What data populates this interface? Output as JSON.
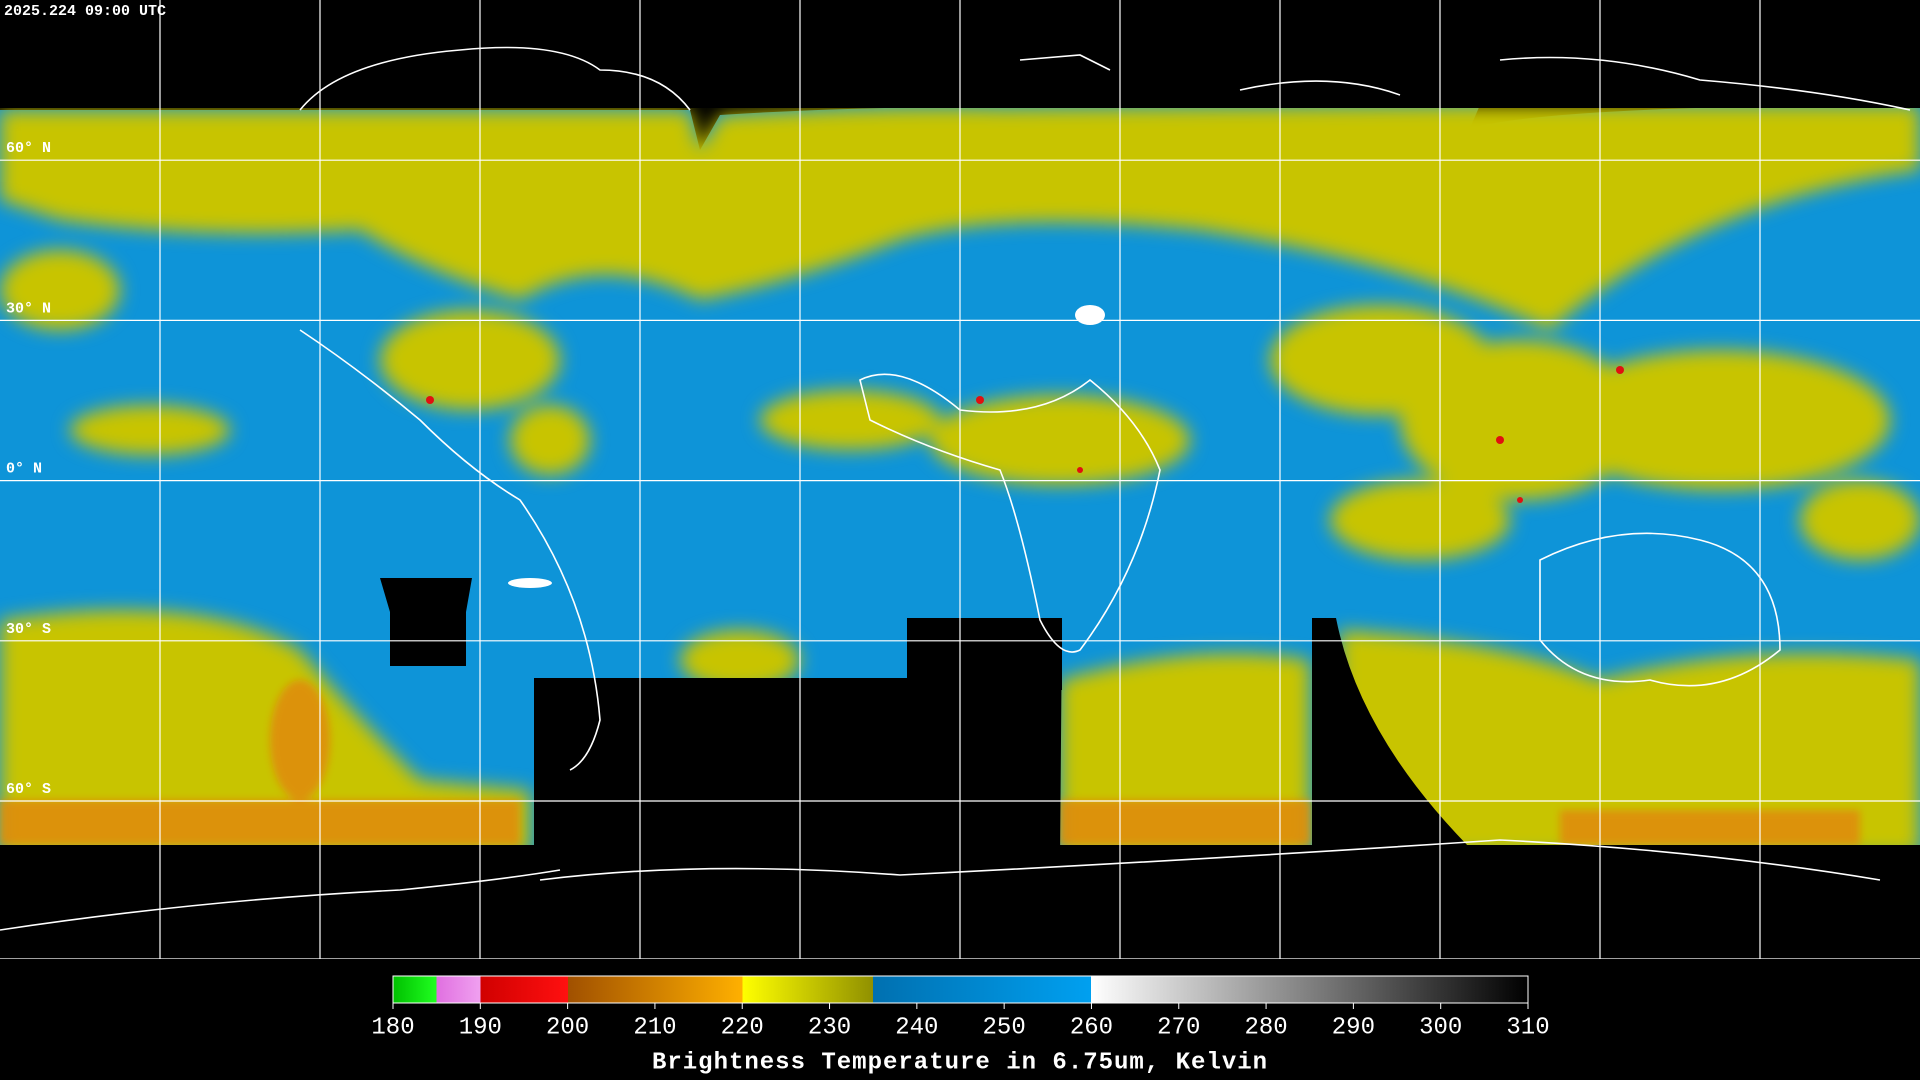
{
  "timestamp": "2025.224 09:00 UTC",
  "latitude_labels": [
    "60° N",
    "30° N",
    "0° N",
    "30° S",
    "60° S"
  ],
  "colorbar": {
    "range": [
      180,
      310
    ],
    "ticks": [
      180,
      190,
      200,
      210,
      220,
      230,
      240,
      250,
      260,
      270,
      280,
      290,
      300,
      310
    ],
    "title": "Brightness Temperature in 6.75um, Kelvin"
  }
}
